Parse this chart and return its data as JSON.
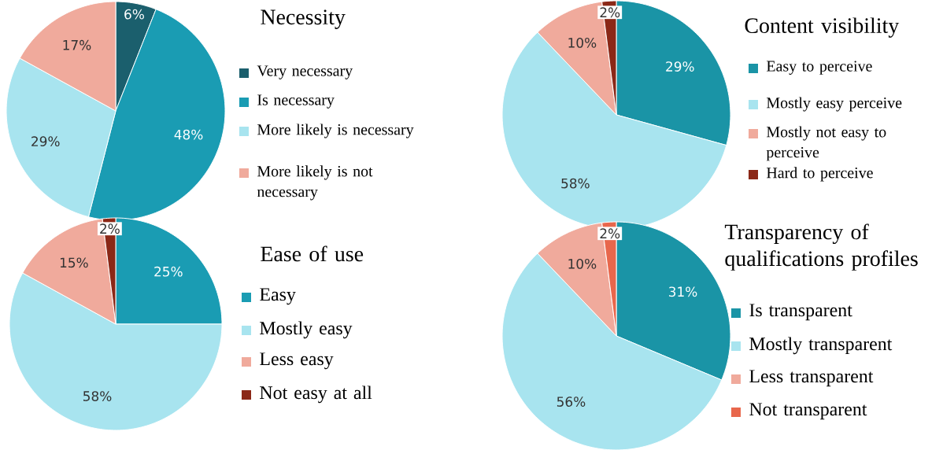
{
  "chart_data": [
    {
      "type": "pie",
      "title": "Necessity",
      "categories": [
        "Very necessary",
        "Is necessary",
        "More likely is necessary",
        "More likely is not necessary"
      ],
      "values": [
        6,
        48,
        29,
        17
      ],
      "colors": [
        "#1b5f6d",
        "#1a9cb3",
        "#a8e4ef",
        "#f0aa9c"
      ],
      "value_labels": [
        "6%",
        "48%",
        "29%",
        "17%"
      ],
      "legend": "right"
    },
    {
      "type": "pie",
      "title": "Content visibility",
      "categories": [
        "Easy to perceive",
        "Mostly easy perceive",
        "Mostly not easy to perceive",
        "Hard to perceive"
      ],
      "values": [
        29,
        58,
        10,
        2
      ],
      "colors": [
        "#1a94a6",
        "#a8e4ef",
        "#f0aa9c",
        "#8b2817"
      ],
      "value_labels": [
        "29%",
        "58%",
        "10%",
        "2%"
      ],
      "legend": "right"
    },
    {
      "type": "pie",
      "title": "Ease of use",
      "categories": [
        "Easy",
        "Mostly easy",
        "Less easy",
        "Not easy at all"
      ],
      "values": [
        25,
        58,
        15,
        2
      ],
      "colors": [
        "#1a9cb3",
        "#a8e4ef",
        "#f0aa9c",
        "#8b2817"
      ],
      "value_labels": [
        "25%",
        "58%",
        "15%",
        "2%"
      ],
      "legend": "right"
    },
    {
      "type": "pie",
      "title": "Transparency of qualifications profiles",
      "categories": [
        "Is transparent",
        "Mostly transparent",
        "Less transparent",
        "Not transparent"
      ],
      "values": [
        31,
        56,
        10,
        2
      ],
      "colors": [
        "#1a94a6",
        "#a8e4ef",
        "#f0aa9c",
        "#e8674c"
      ],
      "value_labels": [
        "31%",
        "56%",
        "10%",
        "2%"
      ],
      "legend": "right"
    }
  ]
}
